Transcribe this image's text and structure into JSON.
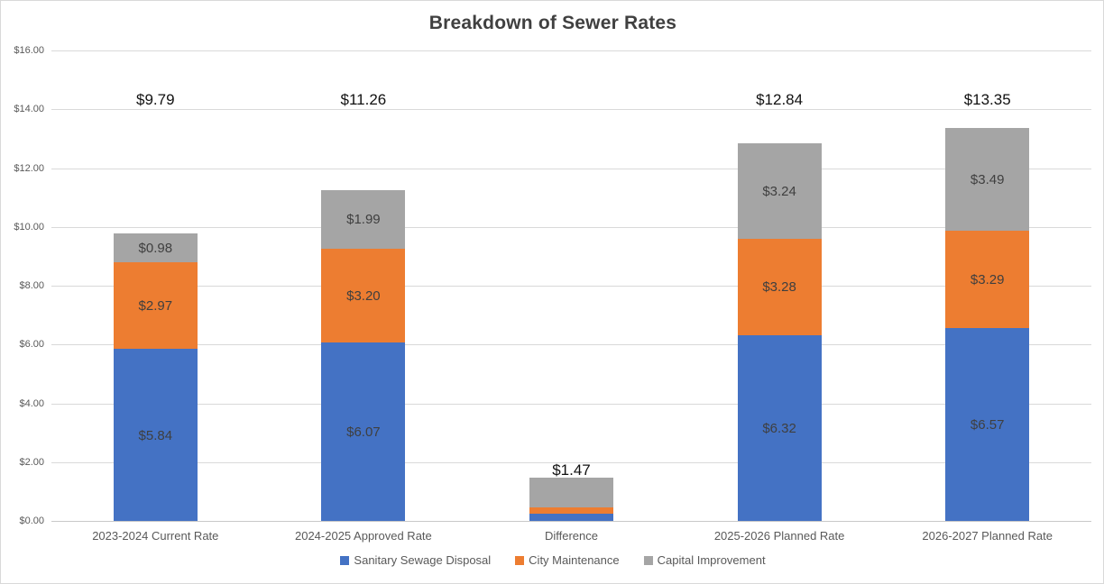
{
  "chart_data": {
    "type": "bar",
    "stacked": true,
    "title": "Breakdown of Sewer Rates",
    "categories": [
      "2023-2024 Current Rate",
      "2024-2025 Approved Rate",
      "Difference",
      "2025-2026 Planned Rate",
      "2026-2027 Planned Rate"
    ],
    "series": [
      {
        "name": "Sanitary Sewage Disposal",
        "color": "#4472C4",
        "values": [
          5.84,
          6.07,
          0.23,
          6.32,
          6.57
        ],
        "labels": [
          "$5.84",
          "$6.07",
          null,
          "$6.32",
          "$6.57"
        ]
      },
      {
        "name": "City Maintenance",
        "color": "#ED7D31",
        "values": [
          2.97,
          3.2,
          0.23,
          3.28,
          3.29
        ],
        "labels": [
          "$2.97",
          "$3.20",
          null,
          "$3.28",
          "$3.29"
        ]
      },
      {
        "name": "Capital Improvement",
        "color": "#A5A5A5",
        "values": [
          0.98,
          1.99,
          1.01,
          3.24,
          3.49
        ],
        "labels": [
          "$0.98",
          "$1.99",
          null,
          "$3.24",
          "$3.49"
        ]
      }
    ],
    "totals": [
      "$9.79",
      "$11.26",
      "$1.47",
      "$12.84",
      "$13.35"
    ],
    "y_axis": {
      "min": 0,
      "max": 16,
      "step": 2,
      "tick_labels": [
        "$0.00",
        "$2.00",
        "$4.00",
        "$6.00",
        "$8.00",
        "$10.00",
        "$12.00",
        "$14.00",
        "$16.00"
      ]
    },
    "grid": true,
    "legend_position": "bottom",
    "legend": [
      "Sanitary Sewage Disposal",
      "City Maintenance",
      "Capital Improvement"
    ],
    "colors": {
      "grid": "#D9D9D9",
      "axis_text": "#595959",
      "segment_label": "#3F3F3F",
      "total_label": "#111111",
      "title": "#404040"
    }
  }
}
